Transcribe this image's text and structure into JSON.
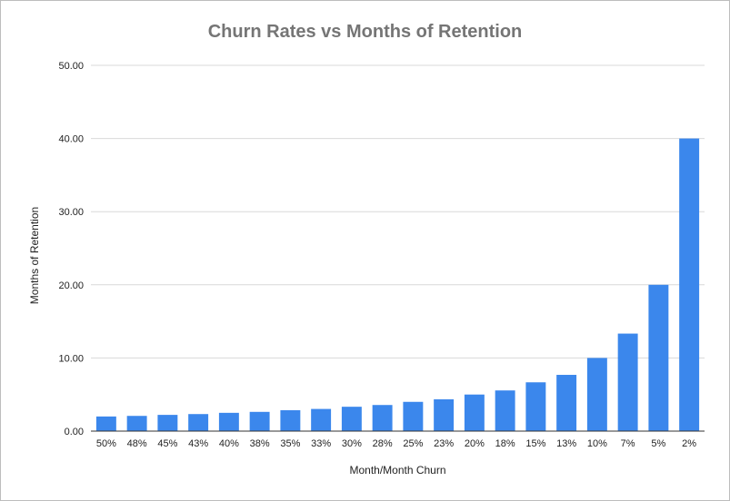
{
  "chart_data": {
    "type": "bar",
    "title": "Churn Rates vs Months of Retention",
    "xlabel": "Month/Month Churn",
    "ylabel": "Months of Retention",
    "categories": [
      "50%",
      "48%",
      "45%",
      "43%",
      "40%",
      "38%",
      "35%",
      "33%",
      "30%",
      "28%",
      "25%",
      "23%",
      "20%",
      "18%",
      "15%",
      "13%",
      "10%",
      "7%",
      "5%",
      "2%"
    ],
    "series": [
      {
        "values": [
          2.0,
          2.08,
          2.22,
          2.33,
          2.5,
          2.63,
          2.86,
          3.03,
          3.33,
          3.57,
          4.0,
          4.35,
          5.0,
          5.56,
          6.67,
          7.69,
          10.0,
          13.33,
          20.0,
          40.0
        ],
        "color": "#3b87ec"
      }
    ],
    "ylim": [
      0,
      50
    ],
    "yticks": [
      "0.00",
      "10.00",
      "20.00",
      "30.00",
      "40.00",
      "50.00"
    ],
    "grid": true,
    "legend": "none"
  }
}
